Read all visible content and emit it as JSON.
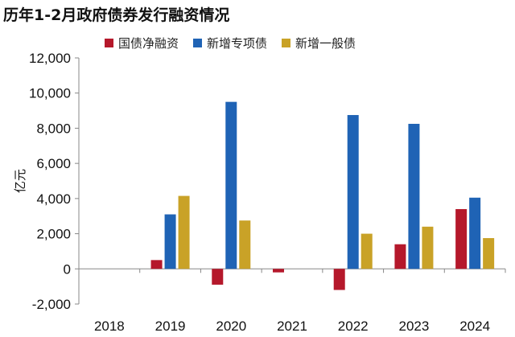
{
  "chart_data": {
    "type": "bar",
    "title": "历年1-2月政府债券发行融资情况",
    "ylabel": "亿元",
    "xlabel": "",
    "categories": [
      "2018",
      "2019",
      "2020",
      "2021",
      "2022",
      "2023",
      "2024"
    ],
    "ylim": [
      -2000,
      12000
    ],
    "yticks": [
      "-2,000",
      "0",
      "2,000",
      "4,000",
      "6,000",
      "8,000",
      "10,000",
      "12,000"
    ],
    "ytick_values": [
      -2000,
      0,
      2000,
      4000,
      6000,
      8000,
      10000,
      12000
    ],
    "legend_position": "top",
    "grid": false,
    "series": [
      {
        "name": "国债净融资",
        "color": "#B5182B",
        "values": [
          0,
          500,
          -900,
          -200,
          -1200,
          1400,
          3400
        ]
      },
      {
        "name": "新增专项债",
        "color": "#1F63B5",
        "values": [
          0,
          3100,
          9500,
          0,
          8750,
          8250,
          4050
        ]
      },
      {
        "name": "新增一般债",
        "color": "#C9A227",
        "values": [
          0,
          4150,
          2750,
          0,
          2000,
          2400,
          1750
        ]
      }
    ]
  }
}
